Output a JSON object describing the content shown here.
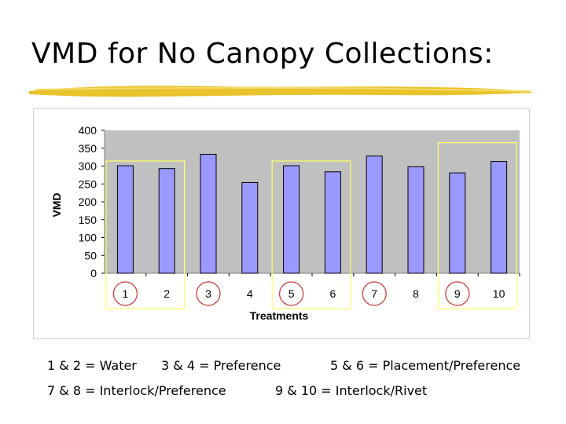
{
  "slide": {
    "title": "VMD for No Canopy Collections:"
  },
  "colors": {
    "bar_fill": "#9999ff",
    "plot_bg": "#c0c0c0",
    "highlight_box": "#ffff66",
    "circle": "#cc3333",
    "underline": "#e8c020"
  },
  "chart_data": {
    "type": "bar",
    "categories": [
      "1",
      "2",
      "3",
      "4",
      "5",
      "6",
      "7",
      "8",
      "9",
      "10"
    ],
    "values": [
      301,
      293,
      333,
      254,
      301,
      284,
      328,
      298,
      281,
      313
    ],
    "ylabel": "VMD",
    "xlabel": "Treatments",
    "ylim": [
      0,
      400
    ],
    "yticks": [
      0,
      50,
      100,
      150,
      200,
      250,
      300,
      350,
      400
    ],
    "grid": false,
    "legend": "none",
    "circled_categories": [
      "1",
      "3",
      "5",
      "7",
      "9"
    ],
    "boxed_groups": [
      [
        "2",
        "1"
      ],
      [
        "5",
        "6"
      ],
      [
        "9",
        "10"
      ]
    ]
  },
  "legend_lines": [
    [
      "1 & 2 = Water",
      "3 & 4 = Preference",
      "5 & 6 = Placement/Preference"
    ],
    [
      "7 & 8 = Interlock/Preference",
      "9 & 10 = Interlock/Rivet"
    ]
  ]
}
